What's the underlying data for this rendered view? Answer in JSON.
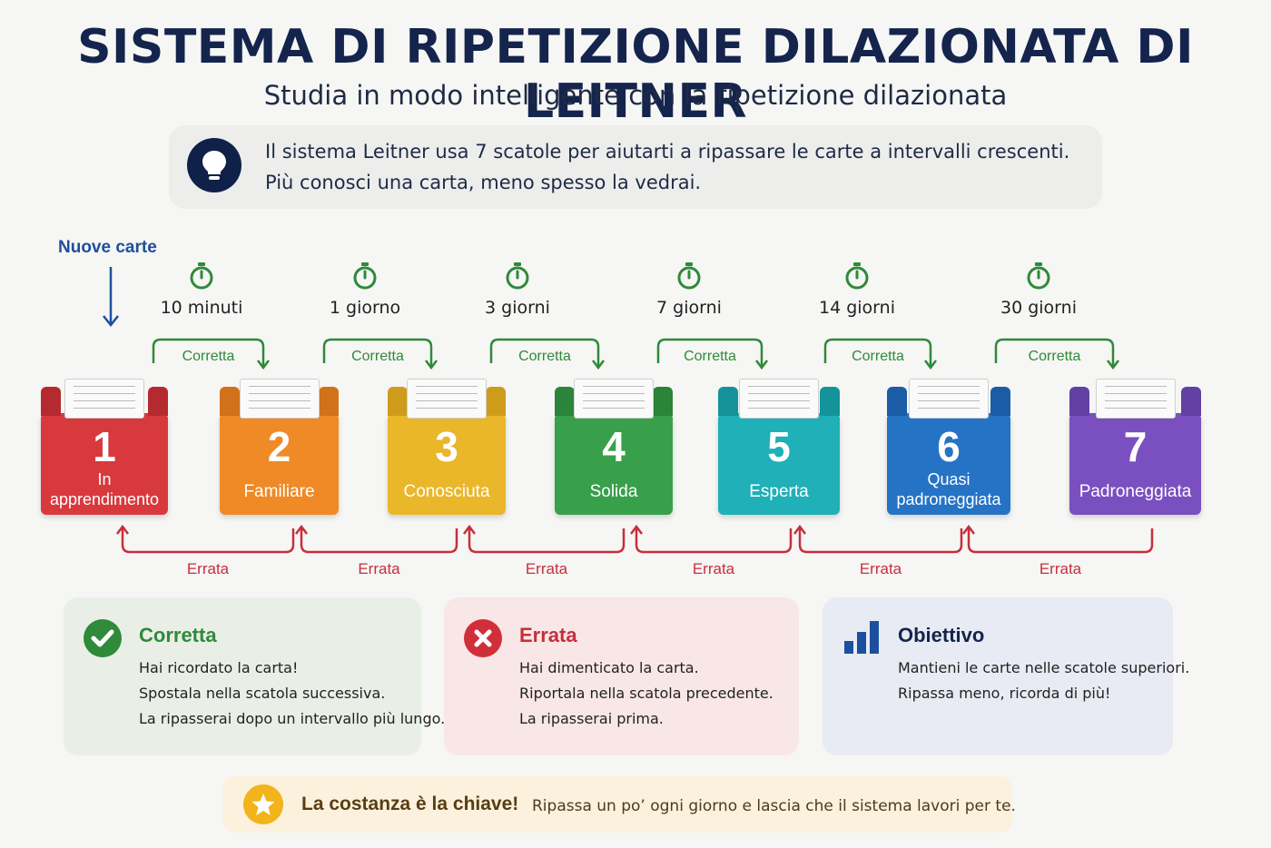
{
  "title": "SISTEMA DI RIPETIZIONE DILAZIONATA DI LEITNER",
  "subtitle": "Studia in modo intelligente con la ripetizione dilazionata",
  "intro": {
    "line1": "Il sistema Leitner usa 7 scatole per aiutarti a ripassare le carte a intervalli crescenti.",
    "line2": "Più conosci una carta, meno spesso la vedrai.",
    "icon": "lightbulb-icon"
  },
  "new_cards_label": "Nuove carte",
  "intervals": [
    "10 minuti",
    "1 giorno",
    "3 giorni",
    "7 giorni",
    "14 giorni",
    "30 giorni"
  ],
  "correct_label": "Corretta",
  "wrong_label": "Errata",
  "boxes": [
    {
      "num": "1",
      "name": "In apprendimento",
      "color": "#d8393d",
      "dark": "#b52a2e"
    },
    {
      "num": "2",
      "name": "Familiare",
      "color": "#ef8a26",
      "dark": "#d1711a"
    },
    {
      "num": "3",
      "name": "Conosciuta",
      "color": "#eab62a",
      "dark": "#cf9b1b"
    },
    {
      "num": "4",
      "name": "Solida",
      "color": "#38a04a",
      "dark": "#2a8439"
    },
    {
      "num": "5",
      "name": "Esperta",
      "color": "#1fb0b8",
      "dark": "#14939a"
    },
    {
      "num": "6",
      "name": "Quasi padroneggiata",
      "color": "#2473c5",
      "dark": "#1a5ca6"
    },
    {
      "num": "7",
      "name": "Padroneggiata",
      "color": "#7a4fbf",
      "dark": "#6340a3"
    }
  ],
  "cards": {
    "correct": {
      "title": "Corretta",
      "lines": [
        "Hai ricordato la carta!",
        "Spostala nella scatola successiva.",
        "La ripasserai dopo un intervallo più lungo."
      ],
      "color": "#2f8a3a",
      "bg": "#e9efe7",
      "icon": "checkmark-icon"
    },
    "wrong": {
      "title": "Errata",
      "lines": [
        "Hai dimenticato la carta.",
        "Riportala nella scatola precedente.",
        "La ripasserai prima."
      ],
      "color": "#c62f3c",
      "bg": "#f8e7e6",
      "icon": "x-mark-icon"
    },
    "goal": {
      "title": "Obiettivo",
      "lines": [
        "Mantieni le carte nelle scatole superiori.",
        "Ripassa meno, ricorda di più!"
      ],
      "color": "#14244d",
      "bg": "#e8ebf3",
      "icon": "bar-chart-icon"
    }
  },
  "tip": {
    "title": "La costanza è la chiave!",
    "text": "Ripassa un po’ ogni giorno e lascia che il sistema lavori per te.",
    "icon": "star-icon"
  }
}
